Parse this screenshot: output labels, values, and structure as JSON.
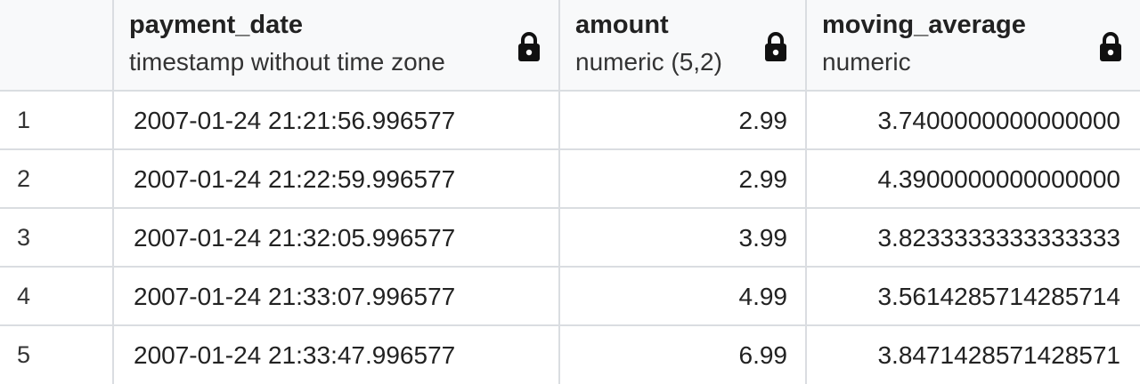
{
  "columns": [
    {
      "name": "payment_date",
      "type": "timestamp without time zone"
    },
    {
      "name": "amount",
      "type": "numeric (5,2)"
    },
    {
      "name": "moving_average",
      "type": "numeric"
    }
  ],
  "rows": [
    {
      "num": "1",
      "payment_date": "2007-01-24 21:21:56.996577",
      "amount": "2.99",
      "moving_average": "3.7400000000000000"
    },
    {
      "num": "2",
      "payment_date": "2007-01-24 21:22:59.996577",
      "amount": "2.99",
      "moving_average": "4.3900000000000000"
    },
    {
      "num": "3",
      "payment_date": "2007-01-24 21:32:05.996577",
      "amount": "3.99",
      "moving_average": "3.8233333333333333"
    },
    {
      "num": "4",
      "payment_date": "2007-01-24 21:33:07.996577",
      "amount": "4.99",
      "moving_average": "3.5614285714285714"
    },
    {
      "num": "5",
      "payment_date": "2007-01-24 21:33:47.996577",
      "amount": "6.99",
      "moving_average": "3.8471428571428571"
    }
  ],
  "icons": {
    "lock": "lock-icon"
  },
  "colors": {
    "header_bg": "#f8f9fa",
    "border": "#dadde1"
  }
}
